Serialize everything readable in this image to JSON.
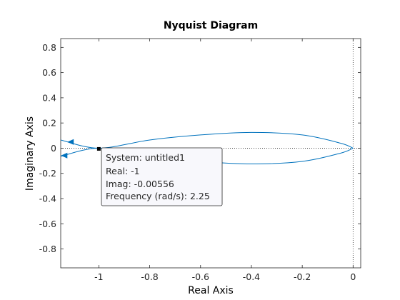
{
  "chart_data": {
    "type": "line",
    "title": "Nyquist Diagram",
    "xlabel": "Real Axis",
    "ylabel": "Imaginary Axis",
    "xlim": [
      -1.15,
      0.03
    ],
    "ylim": [
      -0.95,
      0.87
    ],
    "xticks": [
      -1,
      -0.8,
      -0.6,
      -0.4,
      -0.2,
      0
    ],
    "xtick_labels": [
      "-1",
      "-0.8",
      "-0.6",
      "-0.4",
      "-0.2",
      "0"
    ],
    "yticks": [
      0.8,
      0.6,
      0.4,
      0.2,
      0,
      -0.2,
      -0.4,
      -0.6,
      -0.8
    ],
    "ytick_labels": [
      "0.8",
      "0.6",
      "0.4",
      "0.2",
      "0",
      "-0.2",
      "-0.4",
      "-0.6",
      "-0.8"
    ],
    "grid": false,
    "reference_lines": [
      {
        "orientation": "horizontal",
        "value": 0,
        "style": "dotted"
      },
      {
        "orientation": "vertical",
        "value": 0,
        "style": "dotted"
      }
    ],
    "series": [
      {
        "color": "#0072bd",
        "x": [
          -1.15,
          -1.0,
          -0.8,
          -0.6,
          -0.4,
          -0.2,
          -0.05,
          0.0
        ],
        "y": [
          0.065,
          0.0,
          0.065,
          0.105,
          0.125,
          0.105,
          0.04,
          0.0
        ]
      },
      {
        "color": "#0072bd",
        "x": [
          0.0,
          -0.05,
          -0.2,
          -0.4,
          -0.6,
          -0.8,
          -1.0,
          -1.15
        ],
        "y": [
          0.0,
          -0.04,
          -0.105,
          -0.125,
          -0.105,
          -0.065,
          0.0,
          -0.065
        ]
      }
    ],
    "arrows": [
      {
        "x": -1.11,
        "y": 0.049,
        "direction": "left"
      },
      {
        "x": -1.135,
        "y": -0.058,
        "direction": "left"
      }
    ],
    "datatip": {
      "x": -1,
      "y": -0.00556,
      "lines": [
        "System: untitled1",
        "Real: -1",
        "Imag: -0.00556",
        "Frequency (rad/s): 2.25"
      ]
    }
  }
}
